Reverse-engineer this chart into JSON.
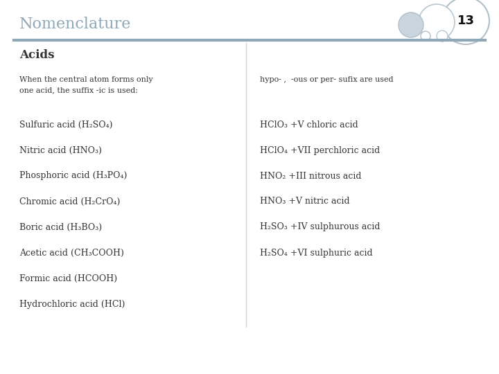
{
  "title": "Nomenclature",
  "slide_number": "13",
  "section_title": "Acids",
  "bg_color": "#ffffff",
  "header_text_color": "#8fa8b8",
  "line_color": "#8fa8b8",
  "body_text_color": "#333333",
  "left_col_items": [
    "When the central atom forms only\none acid, the suffix -ic is used:",
    "Sulfuric acid (H₂SO₄)",
    "Nitric acid (HNO₃)",
    "Phosphoric acid (H₃PO₄)",
    "Chromic acid (H₂CrO₄)",
    "Boric acid (H₃BO₃)",
    "Acetic acid (CH₃COOH)",
    "Formic acid (HCOOH)",
    "Hydrochloric acid (HCl)"
  ],
  "right_col_items": [
    "hypo- ,  -ous or per- sufix are used",
    "HClO₃ +V chloric acid",
    "HClO₄ +VII perchloric acid",
    "HNO₂ +III nitrous acid",
    "HNO₃ +V nitric acid",
    "H₂SO₃ +IV sulphurous acid",
    "H₂SO₄ +VI sulphuric acid"
  ],
  "figsize": [
    7.2,
    5.4
  ],
  "dpi": 100
}
